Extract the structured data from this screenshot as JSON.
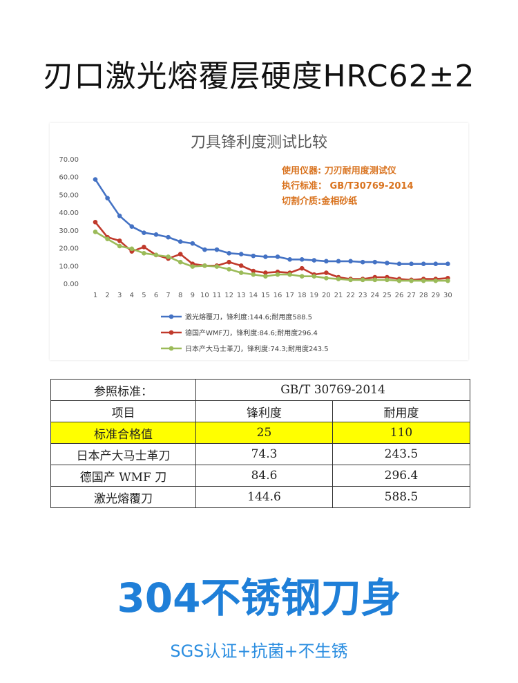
{
  "headline": "刃口激光熔覆层硬度HRC62±2",
  "chart_data": {
    "type": "line",
    "title": "刀具锋利度测试比较",
    "xlabel": "",
    "ylabel": "",
    "x": [
      1,
      2,
      3,
      4,
      5,
      6,
      7,
      8,
      9,
      10,
      11,
      12,
      13,
      14,
      15,
      16,
      17,
      18,
      19,
      20,
      21,
      22,
      23,
      24,
      25,
      26,
      27,
      28,
      29,
      30
    ],
    "ylim": [
      0,
      70
    ],
    "yticks": [
      "0.00",
      "10.00",
      "20.00",
      "30.00",
      "40.00",
      "50.00",
      "60.00",
      "70.00"
    ],
    "grid": false,
    "legend_position": "bottom",
    "annotations": [
      "使用仪器: 刀刃耐用度测试仪",
      "执行标准： GB/T30769-2014",
      "切割介质:金相砂纸"
    ],
    "annotation_color": "#d9731f",
    "series": [
      {
        "name": "激光熔覆刀，锋利度:144.6;耐用度588.5",
        "color": "#4472c4",
        "values": [
          58.5,
          48,
          38,
          32,
          28.5,
          27.5,
          26,
          23.5,
          22.5,
          19,
          19,
          17,
          16.5,
          15.5,
          15,
          15,
          13.5,
          13.5,
          13,
          12.5,
          12.5,
          12.5,
          12,
          12,
          11.5,
          11,
          11,
          11,
          11,
          11
        ]
      },
      {
        "name": "德国产WMF刀，锋利度:84.6;耐用度296.4",
        "color": "#c0392b",
        "values": [
          34.5,
          26,
          24,
          18,
          20.5,
          16,
          14,
          16.5,
          11,
          10,
          10,
          12,
          10,
          7,
          6,
          6.5,
          6,
          8.5,
          5,
          6,
          3.5,
          2.5,
          2.5,
          3.5,
          3.5,
          2.5,
          2,
          2.5,
          2.5,
          3
        ]
      },
      {
        "name": "日本产大马士革刀，锋利度:74.3;耐用度243.5",
        "color": "#9bbb59",
        "values": [
          29,
          25,
          21,
          19.5,
          17,
          16,
          15,
          12,
          9.5,
          10,
          9.5,
          8,
          6,
          5,
          4,
          5,
          5,
          4,
          4,
          3,
          2.5,
          2,
          2,
          2,
          2,
          1.5,
          1.5,
          1.5,
          1.5,
          1.5
        ]
      }
    ]
  },
  "table": {
    "ref_label": "参照标准：",
    "ref_value": "GB/T 30769-2014",
    "header": [
      "项目",
      "锋利度",
      "耐用度"
    ],
    "rows": [
      {
        "name": "标准合格值",
        "sharpness": "25",
        "durability": "110",
        "highlight": true
      },
      {
        "name": "日本产大马士革刀",
        "sharpness": "74.3",
        "durability": "243.5",
        "highlight": false
      },
      {
        "name": "德国产 WMF 刀",
        "sharpness": "84.6",
        "durability": "296.4",
        "highlight": false
      },
      {
        "name": "激光熔覆刀",
        "sharpness": "144.6",
        "durability": "588.5",
        "highlight": false
      }
    ],
    "highlight_color": "#ffff00"
  },
  "big_title": "304不锈钢刀身",
  "sub_title": "SGS认证+抗菌+不生锈",
  "colors": {
    "accent": "#1f7fd8",
    "sub": "#2a8de0"
  }
}
